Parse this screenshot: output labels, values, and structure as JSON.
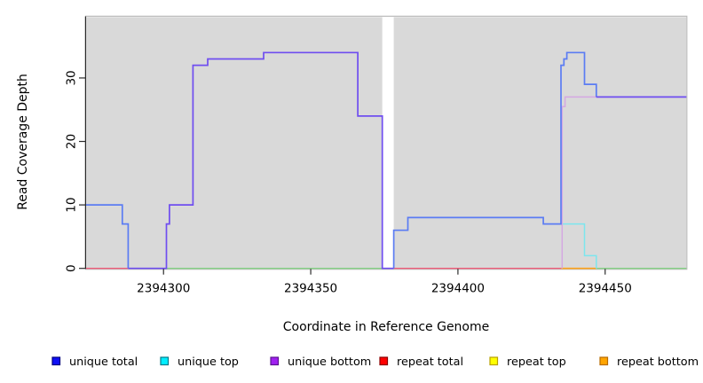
{
  "chart_data": {
    "type": "line",
    "step": true,
    "xlabel": "Coordinate in Reference Genome",
    "ylabel": "Read Coverage Depth",
    "xlim": [
      2394273.7,
      2394477.6
    ],
    "ylim": [
      0,
      39.7
    ],
    "x_ticks": [
      2394300,
      2394350,
      2394400,
      2394450
    ],
    "y_ticks": [
      0,
      10,
      20,
      30
    ],
    "grid": false,
    "panel_background": "#d9d9d9",
    "panel_border": "#b9b9b9",
    "gap_region": [
      2394374.3,
      2394378.2
    ],
    "panels": [
      {
        "from": 2394273.7,
        "to": 2394374.3
      },
      {
        "from": 2394378.2,
        "to": 2394477.6
      }
    ],
    "series": [
      {
        "name": "baseline-green-left",
        "color": "#86d386",
        "width": 1.4,
        "points": [
          [
            2394301,
            0
          ],
          [
            2394374.3,
            0
          ]
        ]
      },
      {
        "name": "baseline-green-right",
        "color": "#86d386",
        "width": 1.4,
        "points": [
          [
            2394447,
            0
          ],
          [
            2394477.6,
            0
          ]
        ]
      },
      {
        "name": "repeat-total-left",
        "color": "#ef5d7a",
        "width": 1.4,
        "points": [
          [
            2394273.7,
            0
          ],
          [
            2394288,
            0
          ]
        ]
      },
      {
        "name": "repeat-total-right",
        "color": "#ef5d7a",
        "width": 1.4,
        "points": [
          [
            2394378.2,
            0
          ],
          [
            2394435,
            0
          ]
        ]
      },
      {
        "name": "repeat-bottom",
        "color": "#ffa51e",
        "width": 1.6,
        "points": [
          [
            2394435,
            0
          ],
          [
            2394447,
            0
          ]
        ]
      },
      {
        "name": "unique-top",
        "color": "#7ce6ee",
        "width": 1.5,
        "points": [
          [
            2394435,
            7
          ],
          [
            2394443,
            2
          ],
          [
            2394447,
            0
          ]
        ]
      },
      {
        "name": "unique-bottom-right",
        "color": "#d4a8e2",
        "width": 1.5,
        "points": [
          [
            2394435.4,
            0
          ],
          [
            2394435.4,
            25.5
          ],
          [
            2394436.4,
            27
          ],
          [
            2394477.6,
            27
          ]
        ]
      },
      {
        "name": "unique-total-left",
        "color": "#5b7cf3",
        "width": 1.7,
        "points": [
          [
            2394273.7,
            10
          ],
          [
            2394286,
            7
          ],
          [
            2394288,
            0
          ]
        ]
      },
      {
        "name": "unique-total-right",
        "color": "#5b7cf3",
        "width": 1.7,
        "points": [
          [
            2394378.2,
            0
          ],
          [
            2394378.2,
            6
          ],
          [
            2394383,
            8
          ],
          [
            2394429,
            7
          ],
          [
            2394435,
            32
          ],
          [
            2394436,
            33
          ],
          [
            2394437,
            34
          ],
          [
            2394443,
            29
          ],
          [
            2394447,
            27
          ]
        ]
      },
      {
        "name": "unique-total-and-bottom-left",
        "color": "#6f4ef0",
        "width": 1.7,
        "points": [
          [
            2394288,
            0
          ],
          [
            2394301,
            7
          ],
          [
            2394302,
            10
          ],
          [
            2394310,
            32
          ],
          [
            2394315,
            33
          ],
          [
            2394334,
            34
          ],
          [
            2394366,
            24
          ],
          [
            2394374.3,
            0
          ],
          [
            2394378.2,
            0
          ]
        ]
      },
      {
        "name": "unique-total-and-bottom-right",
        "color": "#6f4ef0",
        "width": 1.7,
        "points": [
          [
            2394447,
            27
          ],
          [
            2394477.6,
            27
          ]
        ]
      }
    ]
  },
  "legend": [
    {
      "label": "unique total",
      "fill": "#0f0ff5",
      "border": "#000080"
    },
    {
      "label": "unique top",
      "fill": "#00eeff",
      "border": "#007a8a"
    },
    {
      "label": "unique bottom",
      "fill": "#a020f0",
      "border": "#5c1291"
    },
    {
      "label": "repeat total",
      "fill": "#ff0000",
      "border": "#8b0000"
    },
    {
      "label": "repeat top",
      "fill": "#ffff00",
      "border": "#b8a000"
    },
    {
      "label": "repeat bottom",
      "fill": "#ffa500",
      "border": "#b86b00"
    }
  ]
}
